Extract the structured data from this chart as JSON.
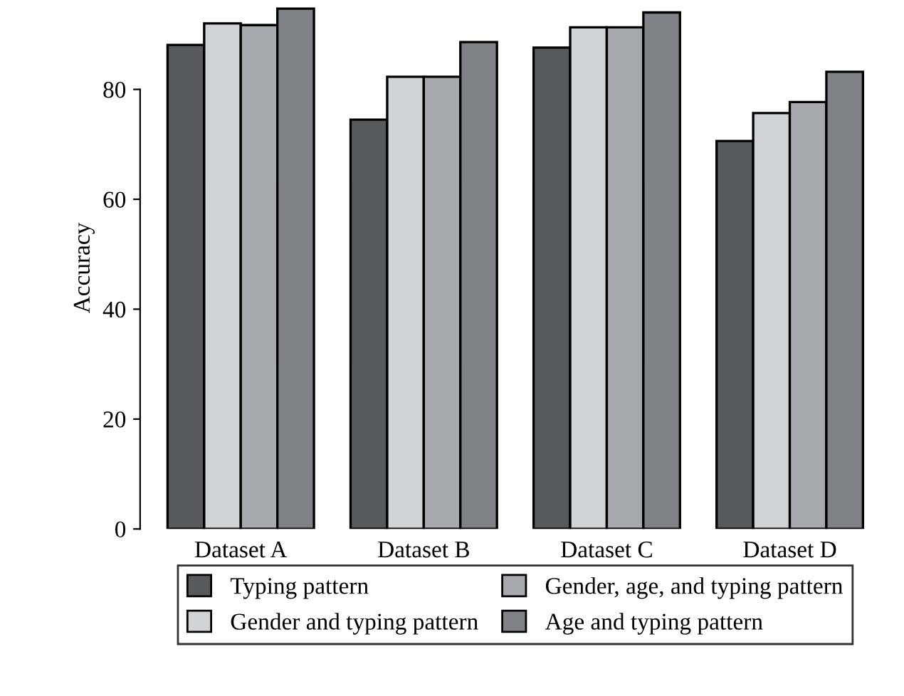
{
  "chart_data": {
    "type": "bar",
    "ylabel": "Accuracy",
    "categories": [
      "Dataset A",
      "Dataset B",
      "Dataset C",
      "Dataset D"
    ],
    "series": [
      {
        "name": "Typing pattern",
        "color": "#58595b",
        "values": [
          88.1,
          74.5,
          87.6,
          70.6
        ]
      },
      {
        "name": "Gender and typing pattern",
        "color": "#d1d3d4",
        "values": [
          92.0,
          82.3,
          91.3,
          75.7
        ]
      },
      {
        "name": "Gender, age, and typing pattern",
        "color": "#a7a9ac",
        "values": [
          91.7,
          82.3,
          91.3,
          77.7
        ]
      },
      {
        "name": "Age and typing pattern",
        "color": "#808285",
        "values": [
          94.7,
          88.6,
          94.0,
          83.2
        ]
      }
    ],
    "ylim": [
      0,
      95
    ],
    "yticks": [
      0,
      20,
      40,
      60,
      80
    ],
    "grid": false,
    "legend": "bottom"
  }
}
